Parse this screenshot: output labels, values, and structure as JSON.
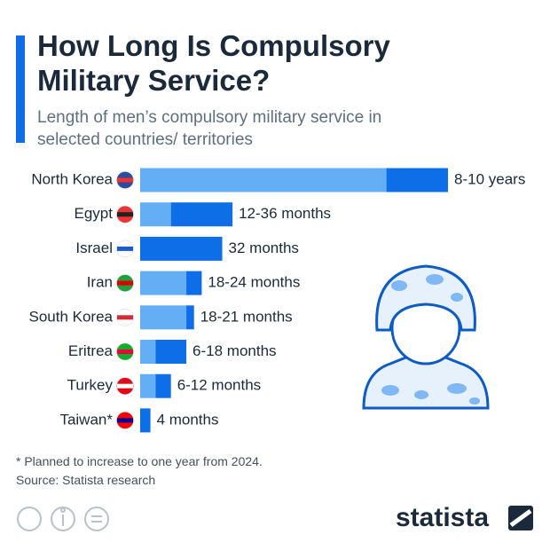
{
  "chart_data": {
    "type": "range_bar",
    "title": "How Long Is Compulsory Military Service?",
    "subtitle": "Length of men’s compulsory military service in selected countries/ territories",
    "categories": [
      "North Korea",
      "Egypt",
      "Israel",
      "Iran",
      "South Korea",
      "Eritrea",
      "Turkey",
      "Taiwan*"
    ],
    "series": [
      {
        "name": "min",
        "color": "#64aef5",
        "values": [
          96,
          12,
          null,
          18,
          18,
          6,
          6,
          null
        ]
      },
      {
        "name": "max",
        "color": "#0d6ee8",
        "values": [
          120,
          36,
          32,
          24,
          21,
          18,
          12,
          4
        ]
      }
    ],
    "value_labels": [
      "8-10 years",
      "12-36 months",
      "32 months",
      "18-24 months",
      "18-21 months",
      "6-18 months",
      "6-12 months",
      "4 months"
    ],
    "note": "* Planned to increase to one year from 2024.",
    "source": "Source: Statista research",
    "brand": "statista"
  }
}
